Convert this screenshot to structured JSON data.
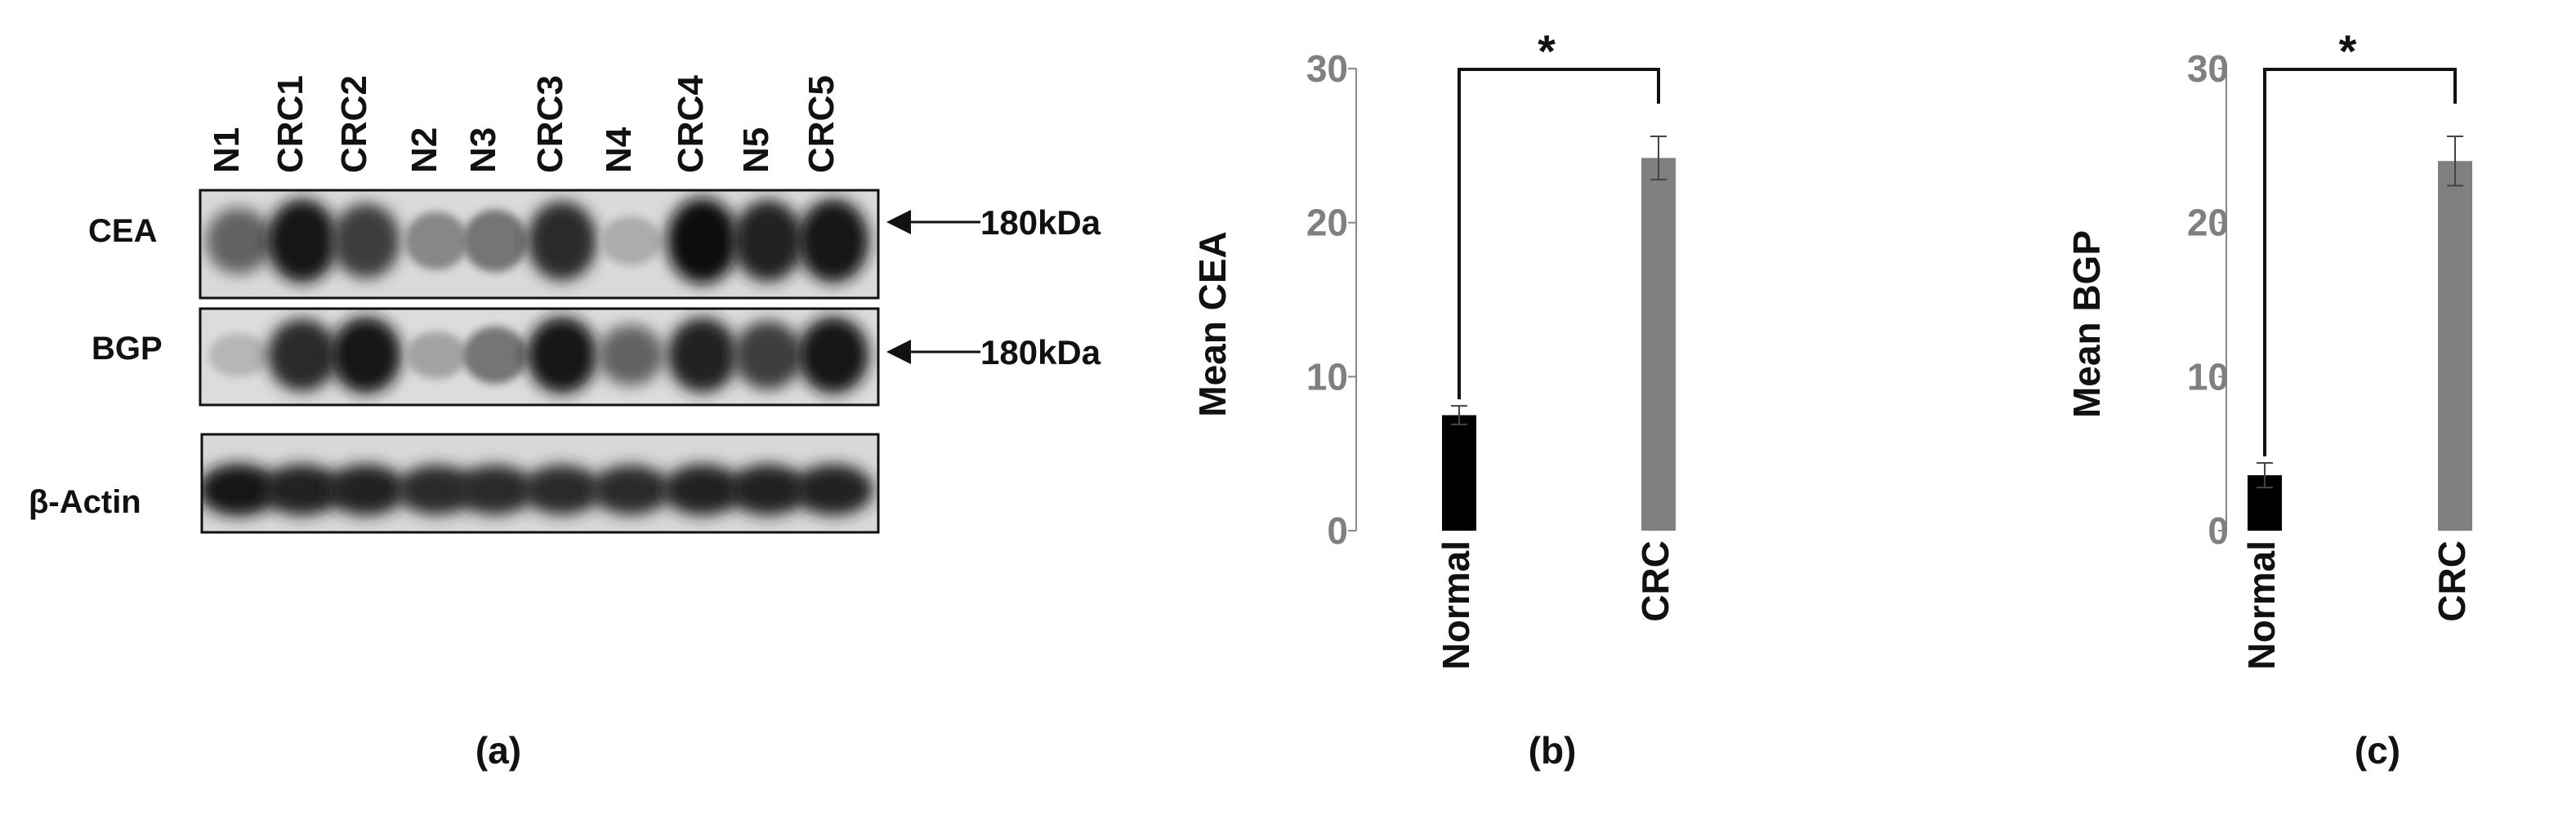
{
  "panels": [
    {
      "id": "a",
      "panel_label": "(a)",
      "lanes": [
        "N1",
        "CRC1",
        "CRC2",
        "N2",
        "N3",
        "CRC3",
        "N4",
        "CRC4",
        "N5",
        "CRC5"
      ],
      "blots": [
        {
          "label": "CEA",
          "marker": "180kDa",
          "bands": [
            0.55,
            0.95,
            0.75,
            0.35,
            0.45,
            0.85,
            0.15,
            1.0,
            0.9,
            0.95
          ]
        },
        {
          "label": "BGP",
          "marker": "180kDa",
          "bands": [
            0.1,
            0.85,
            0.95,
            0.2,
            0.45,
            0.95,
            0.55,
            0.9,
            0.75,
            0.95
          ]
        },
        {
          "label": "β-Actin",
          "marker": "",
          "bands": [
            0.95,
            0.9,
            0.9,
            0.85,
            0.85,
            0.85,
            0.85,
            0.9,
            0.9,
            0.9
          ]
        }
      ]
    }
  ],
  "chart_data": [
    {
      "type": "bar",
      "panel_label": "(b)",
      "categories": [
        "Normal",
        "CRC"
      ],
      "values": [
        7.5,
        24.2
      ],
      "errors": [
        0.6,
        1.4
      ],
      "ylabel": "Mean CEA",
      "ylim": [
        0,
        30
      ],
      "yticks": [
        0,
        10,
        20,
        30
      ],
      "significance": "*",
      "colors": [
        "#000000",
        "#808080"
      ]
    },
    {
      "type": "bar",
      "panel_label": "(c)",
      "categories": [
        "Normal",
        "CRC"
      ],
      "values": [
        3.6,
        24.0
      ],
      "errors": [
        0.8,
        1.6
      ],
      "ylabel": "Mean BGP",
      "ylim": [
        0,
        30
      ],
      "yticks": [
        0,
        10,
        20,
        30
      ],
      "significance": "*",
      "colors": [
        "#000000",
        "#808080"
      ]
    }
  ]
}
